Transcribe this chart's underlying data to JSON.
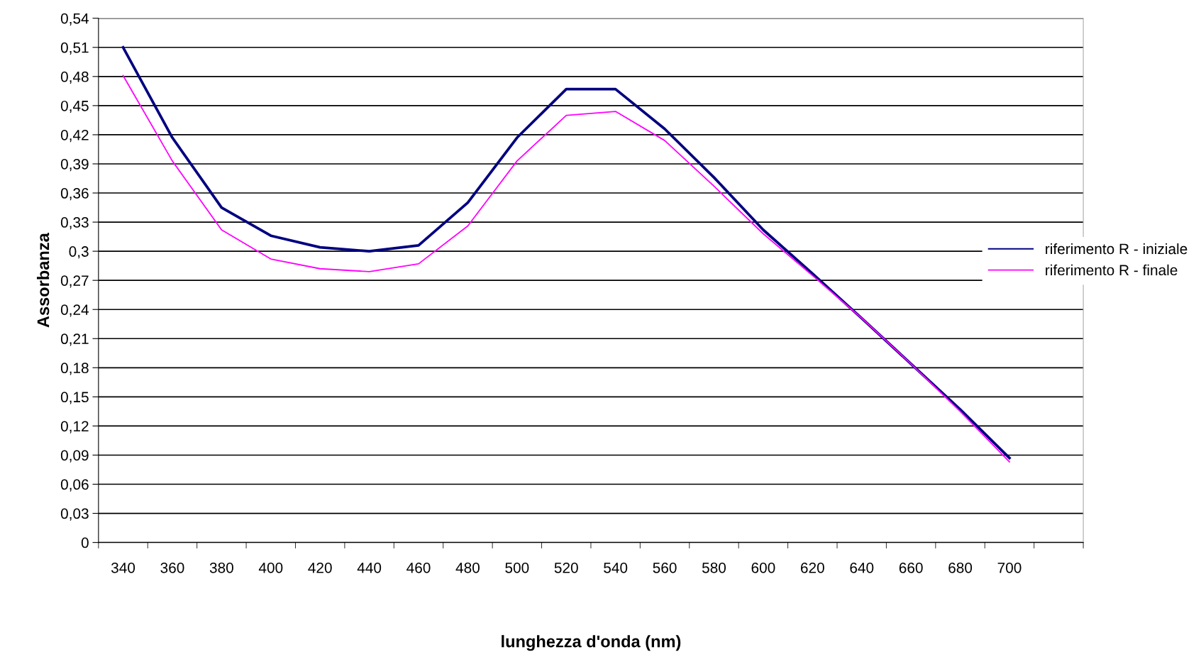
{
  "chart_data": {
    "type": "line",
    "xlabel": "lunghezza d'onda (nm)",
    "ylabel": "Assorbanza",
    "categories": [
      "340",
      "360",
      "380",
      "400",
      "420",
      "440",
      "460",
      "480",
      "500",
      "520",
      "540",
      "560",
      "580",
      "600",
      "620",
      "640",
      "660",
      "680",
      "700",
      null
    ],
    "series": [
      {
        "name": "riferimento R - iniziale",
        "color": "#000080",
        "values": [
          0.51,
          0.417,
          0.345,
          0.316,
          0.304,
          0.3,
          0.306,
          0.35,
          0.417,
          0.467,
          0.467,
          0.426,
          0.376,
          0.322,
          0.277,
          0.231,
          0.184,
          0.137,
          0.087,
          null
        ]
      },
      {
        "name": "riferimento R - finale",
        "color": "#ff00ff",
        "values": [
          0.481,
          0.393,
          0.322,
          0.292,
          0.282,
          0.279,
          0.287,
          0.326,
          0.393,
          0.44,
          0.444,
          0.414,
          0.367,
          0.318,
          0.275,
          0.231,
          0.184,
          0.135,
          0.083,
          null
        ]
      }
    ],
    "ylim": [
      0,
      0.54
    ],
    "yticks": [
      0,
      {
        "value": 0.03,
        "label": "0,03"
      },
      {
        "value": 0.06,
        "label": "0,06"
      },
      {
        "value": 0.09,
        "label": "0,09"
      },
      {
        "value": 0.12,
        "label": "0,12"
      },
      {
        "value": 0.15,
        "label": "0,15"
      },
      {
        "value": 0.18,
        "label": "0,18"
      },
      {
        "value": 0.21,
        "label": "0,21"
      },
      {
        "value": 0.24,
        "label": "0,24"
      },
      {
        "value": 0.27,
        "label": "0,27"
      },
      {
        "value": 0.3,
        "label": "0,3"
      },
      {
        "value": 0.33,
        "label": "0,33"
      },
      {
        "value": 0.36,
        "label": "0,36"
      },
      {
        "value": 0.39,
        "label": "0,39"
      },
      {
        "value": 0.42,
        "label": "0,42"
      },
      {
        "value": 0.45,
        "label": "0,45"
      },
      {
        "value": 0.48,
        "label": "0,48"
      },
      {
        "value": 0.51,
        "label": "0,51"
      },
      {
        "value": 0.54,
        "label": "0,54"
      }
    ],
    "grid": "y",
    "legend": "right",
    "marker": "none",
    "line_style": "solid"
  }
}
